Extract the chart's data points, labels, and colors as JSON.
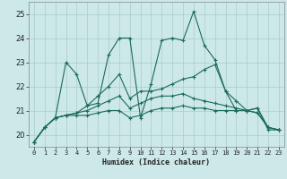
{
  "xlabel": "Humidex (Indice chaleur)",
  "bg_color": "#cce8e8",
  "grid_color": "#aacccc",
  "line_color": "#1a6b5a",
  "xlim": [
    -0.5,
    23.5
  ],
  "ylim": [
    19.5,
    25.5
  ],
  "yticks": [
    20,
    21,
    22,
    23,
    24,
    25
  ],
  "xticks": [
    0,
    1,
    2,
    3,
    4,
    5,
    6,
    7,
    8,
    9,
    10,
    11,
    12,
    13,
    14,
    15,
    16,
    17,
    18,
    19,
    20,
    21,
    22,
    23
  ],
  "series": [
    [
      19.7,
      20.3,
      20.7,
      23.0,
      22.5,
      21.2,
      21.3,
      23.3,
      24.0,
      24.0,
      20.7,
      22.1,
      23.9,
      24.0,
      23.9,
      25.1,
      23.7,
      23.1,
      21.8,
      21.0,
      21.0,
      21.1,
      20.2,
      20.2
    ],
    [
      19.7,
      20.3,
      20.7,
      20.8,
      20.8,
      20.8,
      20.9,
      21.0,
      21.0,
      20.7,
      20.8,
      21.0,
      21.1,
      21.1,
      21.2,
      21.1,
      21.1,
      21.0,
      21.0,
      21.0,
      21.0,
      20.9,
      20.3,
      20.2
    ],
    [
      19.7,
      20.3,
      20.7,
      20.8,
      20.9,
      21.0,
      21.2,
      21.4,
      21.6,
      21.1,
      21.3,
      21.5,
      21.6,
      21.6,
      21.7,
      21.5,
      21.4,
      21.3,
      21.2,
      21.1,
      21.0,
      20.9,
      20.3,
      20.2
    ],
    [
      19.7,
      20.3,
      20.7,
      20.8,
      20.9,
      21.2,
      21.6,
      22.0,
      22.5,
      21.5,
      21.8,
      21.8,
      21.9,
      22.1,
      22.3,
      22.4,
      22.7,
      22.9,
      21.8,
      21.4,
      21.0,
      21.1,
      20.3,
      20.2
    ]
  ]
}
